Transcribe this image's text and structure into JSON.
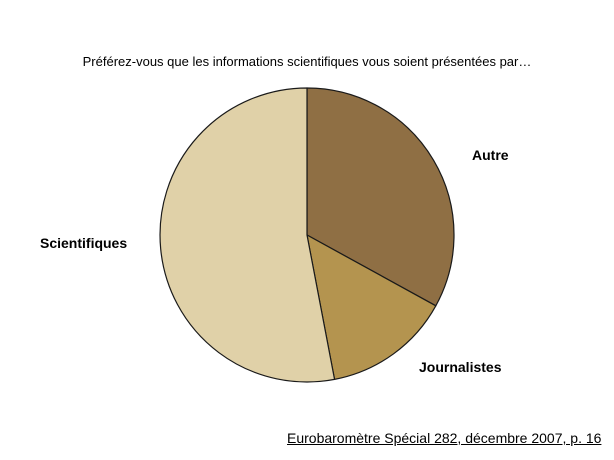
{
  "title": "Préférez-vous que les informations scientifiques vous soient présentées par…",
  "source": "Eurobaromètre Spécial 282, décembre 2007, p. 16",
  "chart_data": {
    "type": "pie",
    "title": "Préférez-vous que les informations scientifiques vous soient présentées par…",
    "start": "12 o'clock, clockwise",
    "slices": [
      {
        "label": "Autre",
        "value": 33,
        "color": "#8f6f44"
      },
      {
        "label": "Journalistes",
        "value": 14,
        "color": "#b4944f"
      },
      {
        "label": "Scientifiques",
        "value": 53,
        "color": "#e0d1a8"
      }
    ]
  }
}
